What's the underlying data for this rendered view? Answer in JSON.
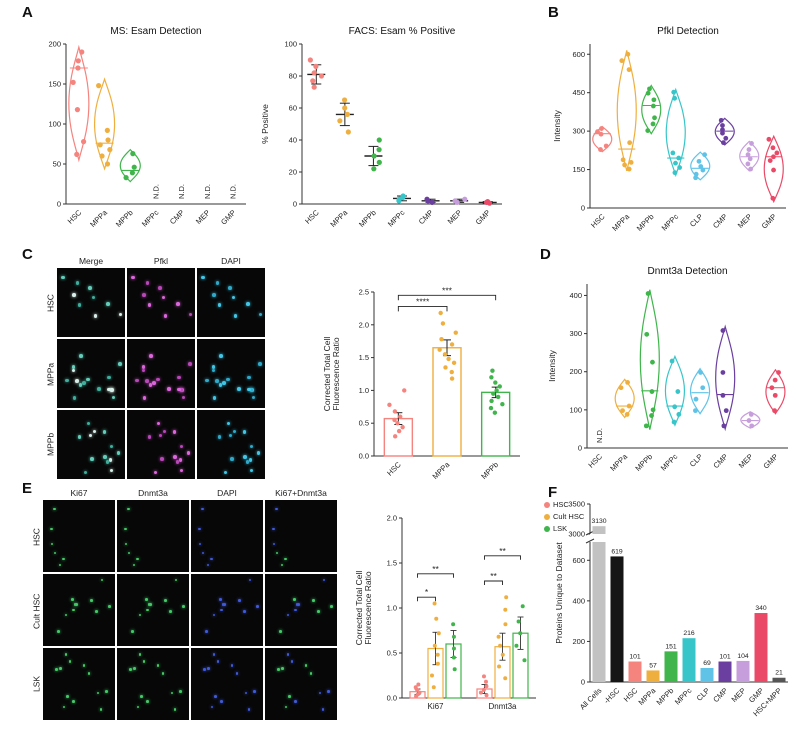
{
  "figure": {
    "panels": {
      "A": "A",
      "B": "B",
      "C": "C",
      "D": "D",
      "E": "E",
      "F": "F"
    }
  },
  "palette": {
    "HSC": "#F5837E",
    "MPPa": "#EFAF3F",
    "MPPb": "#3FB54B",
    "MPPc": "#38C5C9",
    "CLP": "#5FC3E8",
    "CMP": "#6A3FA0",
    "MEP": "#C79EDC",
    "GMP": "#EA4A67",
    "all_cells": "#C2C2C2",
    "minus_hsc": "#151515",
    "hsc_mpp": "#555555",
    "cult_hsc": "#EFAF3F",
    "lsk": "#3FB54B"
  },
  "chart_data": {
    "ms_esam": {
      "type": "violin",
      "title": "MS: Esam Detection",
      "ylabel": "",
      "ylim": [
        0,
        200
      ],
      "yticks": [
        0,
        50,
        100,
        150,
        200
      ],
      "ydec": 0,
      "nd_label": "N.D.",
      "categories": [
        "HSC",
        "MPPa",
        "MPPb",
        "MPPc",
        "CMP",
        "MEP",
        "GMP"
      ],
      "color_keys": [
        "HSC",
        "MPPa",
        "MPPb",
        "MPPc",
        "CMP",
        "MEP",
        "GMP"
      ],
      "series": [
        {
          "points": [
            62,
            78,
            118,
            152,
            170,
            179,
            190
          ],
          "range": [
            55,
            196
          ],
          "median": 170
        },
        {
          "points": [
            50,
            60,
            68,
            74,
            80,
            92,
            148
          ],
          "range": [
            44,
            156
          ],
          "median": 76
        },
        {
          "points": [
            33,
            39,
            46,
            63
          ],
          "range": [
            28,
            68
          ],
          "median": 42
        },
        {
          "nd": true
        },
        {
          "nd": true
        },
        {
          "nd": true
        },
        {
          "nd": true
        }
      ]
    },
    "facs_esam": {
      "type": "scatter-mean",
      "title": "FACS: Esam % Positive",
      "ylabel": "% Positive",
      "ylim": [
        0,
        100
      ],
      "yticks": [
        0,
        20,
        40,
        60,
        80,
        100
      ],
      "ydec": 0,
      "categories": [
        "HSC",
        "MPPa",
        "MPPb",
        "MPPc",
        "CMP",
        "MEP",
        "GMP"
      ],
      "color_keys": [
        "HSC",
        "MPPa",
        "MPPb",
        "MPPc",
        "CMP",
        "MEP",
        "GMP"
      ],
      "series": [
        {
          "points": [
            73,
            77,
            80,
            82,
            86,
            90
          ],
          "mean": 81,
          "err": 6
        },
        {
          "points": [
            45,
            52,
            56,
            60,
            65
          ],
          "mean": 56,
          "err": 7
        },
        {
          "points": [
            22,
            26,
            30,
            34,
            40
          ],
          "mean": 30,
          "err": 6
        },
        {
          "points": [
            2,
            3,
            4,
            5
          ],
          "mean": 3.5,
          "err": 1.5
        },
        {
          "points": [
            1,
            2,
            3
          ],
          "mean": 2,
          "err": 1
        },
        {
          "points": [
            1,
            2,
            3
          ],
          "mean": 2,
          "err": 1
        },
        {
          "points": [
            0.5,
            1,
            1.5
          ],
          "mean": 1,
          "err": 0.5
        }
      ]
    },
    "pfkl_detection": {
      "type": "violin",
      "title": "Pfkl Detection",
      "ylabel": "Intensity",
      "ylim": [
        0,
        640
      ],
      "yticks": [
        0,
        150,
        300,
        450,
        600
      ],
      "ydec": 0,
      "nd_label": "N.D.",
      "categories": [
        "HSC",
        "MPPa",
        "MPPb",
        "MPPc",
        "CLP",
        "CMP",
        "MEP",
        "GMP"
      ],
      "color_keys": [
        "HSC",
        "MPPa",
        "MPPb",
        "MPPc",
        "CLP",
        "CMP",
        "MEP",
        "GMP"
      ],
      "series": [
        {
          "points": [
            228,
            242,
            288,
            298,
            310
          ],
          "range": [
            220,
            318
          ],
          "median": 290
        },
        {
          "points": [
            152,
            168,
            178,
            188,
            255,
            540,
            575,
            600
          ],
          "range": [
            145,
            615
          ],
          "median": 230
        },
        {
          "points": [
            302,
            328,
            352,
            398,
            422,
            448,
            465
          ],
          "range": [
            290,
            478
          ],
          "median": 400
        },
        {
          "points": [
            138,
            158,
            175,
            195,
            215,
            428,
            452
          ],
          "range": [
            128,
            462
          ],
          "median": 195
        },
        {
          "points": [
            118,
            132,
            148,
            162,
            182,
            208
          ],
          "range": [
            110,
            218
          ],
          "median": 155
        },
        {
          "points": [
            255,
            272,
            292,
            305,
            322,
            342
          ],
          "range": [
            246,
            350
          ],
          "median": 300
        },
        {
          "points": [
            152,
            172,
            192,
            208,
            228,
            252
          ],
          "range": [
            145,
            260
          ],
          "median": 200
        },
        {
          "points": [
            38,
            148,
            185,
            200,
            215,
            235,
            268
          ],
          "range": [
            25,
            280
          ],
          "median": 200
        }
      ]
    },
    "pfkl_ctcf": {
      "type": "bar",
      "title": "",
      "ylabel": "Corrected Total Cell\nFluorescence Ratio",
      "ylim": [
        0,
        2.5
      ],
      "yticks": [
        0,
        0.5,
        1,
        1.5,
        2,
        2.5
      ],
      "ydec": 1,
      "categories": [
        "HSC",
        "MPPa",
        "MPPb"
      ],
      "color_keys": [
        "HSC",
        "MPPa",
        "MPPb"
      ],
      "values": [
        0.57,
        1.65,
        0.97
      ],
      "errors": [
        0.09,
        0.12,
        0.08
      ],
      "points": [
        [
          0.3,
          0.38,
          0.44,
          0.5,
          0.55,
          0.6,
          0.68,
          0.78,
          1.0
        ],
        [
          1.18,
          1.28,
          1.35,
          1.42,
          1.48,
          1.55,
          1.62,
          1.7,
          1.78,
          1.88,
          2.02,
          2.18
        ],
        [
          0.66,
          0.73,
          0.79,
          0.84,
          0.9,
          0.95,
          1.0,
          1.06,
          1.12,
          1.2,
          1.3
        ]
      ],
      "sig": [
        {
          "from": 0,
          "to": 1,
          "label": "****",
          "y": 2.28
        },
        {
          "from": 0,
          "to": 2,
          "label": "***",
          "y": 2.45
        }
      ]
    },
    "dnmt3a_detection": {
      "type": "violin",
      "title": "Dnmt3a Detection",
      "ylabel": "Intensity",
      "ylim": [
        0,
        430
      ],
      "yticks": [
        0,
        100,
        200,
        300,
        400
      ],
      "ydec": 0,
      "nd_label": "N.D.",
      "categories": [
        "HSC",
        "MPPa",
        "MPPb",
        "MPPc",
        "CLP",
        "CMP",
        "MEP",
        "GMP"
      ],
      "color_keys": [
        "HSC",
        "MPPa",
        "MPPb",
        "MPPc",
        "CLP",
        "CMP",
        "MEP",
        "GMP"
      ],
      "series": [
        {
          "nd": true
        },
        {
          "points": [
            88,
            98,
            110,
            158,
            172
          ],
          "range": [
            80,
            180
          ],
          "median": 110
        },
        {
          "points": [
            58,
            85,
            100,
            148,
            225,
            298,
            405
          ],
          "range": [
            48,
            415
          ],
          "median": 150
        },
        {
          "points": [
            68,
            88,
            108,
            148,
            228
          ],
          "range": [
            60,
            240
          ],
          "median": 110
        },
        {
          "points": [
            98,
            128,
            158,
            198
          ],
          "range": [
            90,
            208
          ],
          "median": 145
        },
        {
          "points": [
            58,
            98,
            138,
            198,
            308
          ],
          "range": [
            50,
            318
          ],
          "median": 140
        },
        {
          "points": [
            58,
            72,
            88
          ],
          "range": [
            52,
            95
          ],
          "median": 72
        },
        {
          "points": [
            98,
            138,
            158,
            178,
            198
          ],
          "range": [
            90,
            205
          ],
          "median": 158
        }
      ]
    },
    "ctcf_ki67_dnmt3a": {
      "type": "grouped-bar",
      "title": "",
      "ylabel": "Corrected Total Cell\nFluorescence Ratio",
      "ylim": [
        0,
        2
      ],
      "yticks": [
        0,
        0.5,
        1,
        1.5,
        2
      ],
      "ydec": 1,
      "groups": [
        "Ki67",
        "Dnmt3a"
      ],
      "series": [
        {
          "name": "HSC",
          "color_key": "HSC",
          "values": [
            0.07,
            0.1
          ],
          "errors": [
            0.03,
            0.05
          ],
          "points": [
            [
              0.02,
              0.04,
              0.06,
              0.09,
              0.12,
              0.15
            ],
            [
              0.03,
              0.06,
              0.09,
              0.13,
              0.18,
              0.24
            ]
          ]
        },
        {
          "name": "Cult HSC",
          "color_key": "cult_hsc",
          "values": [
            0.55,
            0.57
          ],
          "errors": [
            0.18,
            0.15
          ],
          "points": [
            [
              0.12,
              0.25,
              0.38,
              0.48,
              0.58,
              0.72,
              0.88,
              1.05
            ],
            [
              0.22,
              0.35,
              0.48,
              0.58,
              0.68,
              0.82,
              0.98,
              1.12
            ]
          ]
        },
        {
          "name": "LSK",
          "color_key": "lsk",
          "values": [
            0.6,
            0.72
          ],
          "errors": [
            0.15,
            0.18
          ],
          "points": [
            [
              0.32,
              0.45,
              0.55,
              0.68,
              0.82
            ],
            [
              0.42,
              0.58,
              0.72,
              0.85,
              1.02
            ]
          ]
        }
      ],
      "sig": [
        {
          "group": 0,
          "from": 0,
          "to": 1,
          "label": "*",
          "y": 1.12
        },
        {
          "group": 0,
          "from": 0,
          "to": 2,
          "label": "**",
          "y": 1.38
        },
        {
          "group": 1,
          "from": 0,
          "to": 1,
          "label": "**",
          "y": 1.3
        },
        {
          "group": 1,
          "from": 0,
          "to": 2,
          "label": "**",
          "y": 1.58
        }
      ]
    },
    "unique_proteins": {
      "type": "broken-bar",
      "title": "",
      "ylabel": "Proteins Unique to Dataset",
      "axis": {
        "lower": [
          0,
          700
        ],
        "lower_ticks": [
          0,
          200,
          400,
          600
        ],
        "upper": [
          3000,
          3500
        ],
        "upper_ticks": [
          3000,
          3500
        ]
      },
      "categories": [
        "All Cells",
        "-HSC",
        "HSC",
        "MPPa",
        "MPPb",
        "MPPc",
        "CLP",
        "CMP",
        "MEP",
        "GMP",
        "HSC+MPP"
      ],
      "color_keys": [
        "all_cells",
        "minus_hsc",
        "HSC",
        "MPPa",
        "MPPb",
        "MPPc",
        "CLP",
        "CMP",
        "MEP",
        "GMP",
        "hsc_mpp"
      ],
      "values": [
        3130,
        619,
        101,
        57,
        151,
        216,
        69,
        101,
        104,
        340,
        21
      ]
    }
  },
  "microscopy": {
    "pfkl": {
      "columns": [
        "Merge",
        "Pfkl",
        "DAPI"
      ],
      "rows": [
        "HSC",
        "MPPa",
        "MPPb"
      ],
      "cell_counts": [
        9,
        16,
        13
      ],
      "column_colors": {
        "Merge": [
          "#62CDB9",
          "#D9EFE9",
          "#3FAE9C"
        ],
        "Pfkl": [
          "#DD66DD",
          "#B847B8"
        ],
        "DAPI": [
          "#41C6E6",
          "#2FA9C9"
        ]
      }
    },
    "ki67": {
      "columns": [
        "Ki67",
        "Dnmt3a",
        "DAPI",
        "Ki67+Dnmt3a"
      ],
      "rows": [
        "HSC",
        "Cult HSC",
        "LSK"
      ],
      "cell_counts": [
        6,
        10,
        12
      ],
      "column_colors": {
        "Ki67": [
          "#44C868"
        ],
        "Dnmt3a": [
          "#44C868"
        ],
        "DAPI": [
          "#4059D8"
        ],
        "Ki67+Dnmt3a": [
          "#44C868",
          "#4059D8"
        ]
      }
    }
  }
}
